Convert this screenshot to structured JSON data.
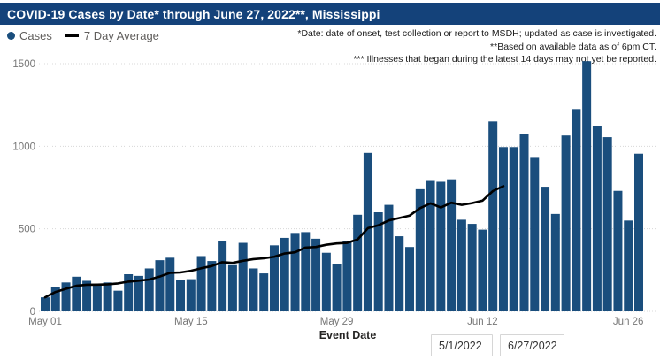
{
  "title": "COVID-19 Cases by Date* through June 27, 2022**, Mississippi",
  "legend": {
    "cases_label": "Cases",
    "avg_label": "7 Day Average"
  },
  "annotations": [
    "*Date: date of onset, test collection or report to MSDH; updated as case is investigated.",
    "**Based on available data as of 6pm CT.",
    "*** Illnesses that began during the latest 14 days may not yet be reported."
  ],
  "date_filters": {
    "start_value": "5/1/2022",
    "end_value": "6/27/2022"
  },
  "colors": {
    "bar": "#1A4E7D",
    "title_bar": "#14427A",
    "avg_line": "#000000",
    "gridline": "#D8D8D8",
    "tick_label": "#777777"
  },
  "chart_data": {
    "type": "bar",
    "title": "COVID-19 Cases by Date through June 27, 2022, Mississippi",
    "xlabel": "Event Date",
    "ylabel": "",
    "ylim": [
      0,
      1500
    ],
    "yticks": [
      0,
      500,
      1000,
      1500
    ],
    "grid": "dotted-horizontal",
    "legend_position": "top-left",
    "xticks": [
      "May 01",
      "May 15",
      "May 29",
      "Jun 12",
      "Jun 26"
    ],
    "xtick_day_index": [
      0,
      14,
      28,
      42,
      56
    ],
    "dates": [
      "May 1",
      "May 2",
      "May 3",
      "May 4",
      "May 5",
      "May 6",
      "May 7",
      "May 8",
      "May 9",
      "May 10",
      "May 11",
      "May 12",
      "May 13",
      "May 14",
      "May 15",
      "May 16",
      "May 17",
      "May 18",
      "May 19",
      "May 20",
      "May 21",
      "May 22",
      "May 23",
      "May 24",
      "May 25",
      "May 26",
      "May 27",
      "May 28",
      "May 29",
      "May 30",
      "May 31",
      "Jun 1",
      "Jun 2",
      "Jun 3",
      "Jun 4",
      "Jun 5",
      "Jun 6",
      "Jun 7",
      "Jun 8",
      "Jun 9",
      "Jun 10",
      "Jun 11",
      "Jun 12",
      "Jun 13",
      "Jun 14",
      "Jun 15",
      "Jun 16",
      "Jun 17",
      "Jun 18",
      "Jun 19",
      "Jun 20",
      "Jun 21",
      "Jun 22",
      "Jun 23",
      "Jun 24",
      "Jun 25",
      "Jun 26",
      "Jun 27"
    ],
    "series": [
      {
        "name": "Cases",
        "render": "bar",
        "color": "#1A4E7D",
        "values": [
          85,
          150,
          175,
          210,
          185,
          165,
          175,
          125,
          225,
          215,
          260,
          310,
          325,
          190,
          195,
          335,
          305,
          425,
          280,
          415,
          260,
          230,
          400,
          445,
          475,
          480,
          440,
          355,
          285,
          425,
          585,
          960,
          600,
          645,
          455,
          390,
          740,
          790,
          785,
          800,
          555,
          530,
          495,
          1150,
          995,
          995,
          1075,
          930,
          755,
          590,
          1065,
          1225,
          1515,
          1120,
          1055,
          730,
          550,
          955
        ]
      },
      {
        "name": "7 Day Average",
        "render": "line",
        "color": "#000000",
        "derived": "trailing-7-day-mean-of-Cases",
        "last_day_index": 44
      }
    ]
  }
}
